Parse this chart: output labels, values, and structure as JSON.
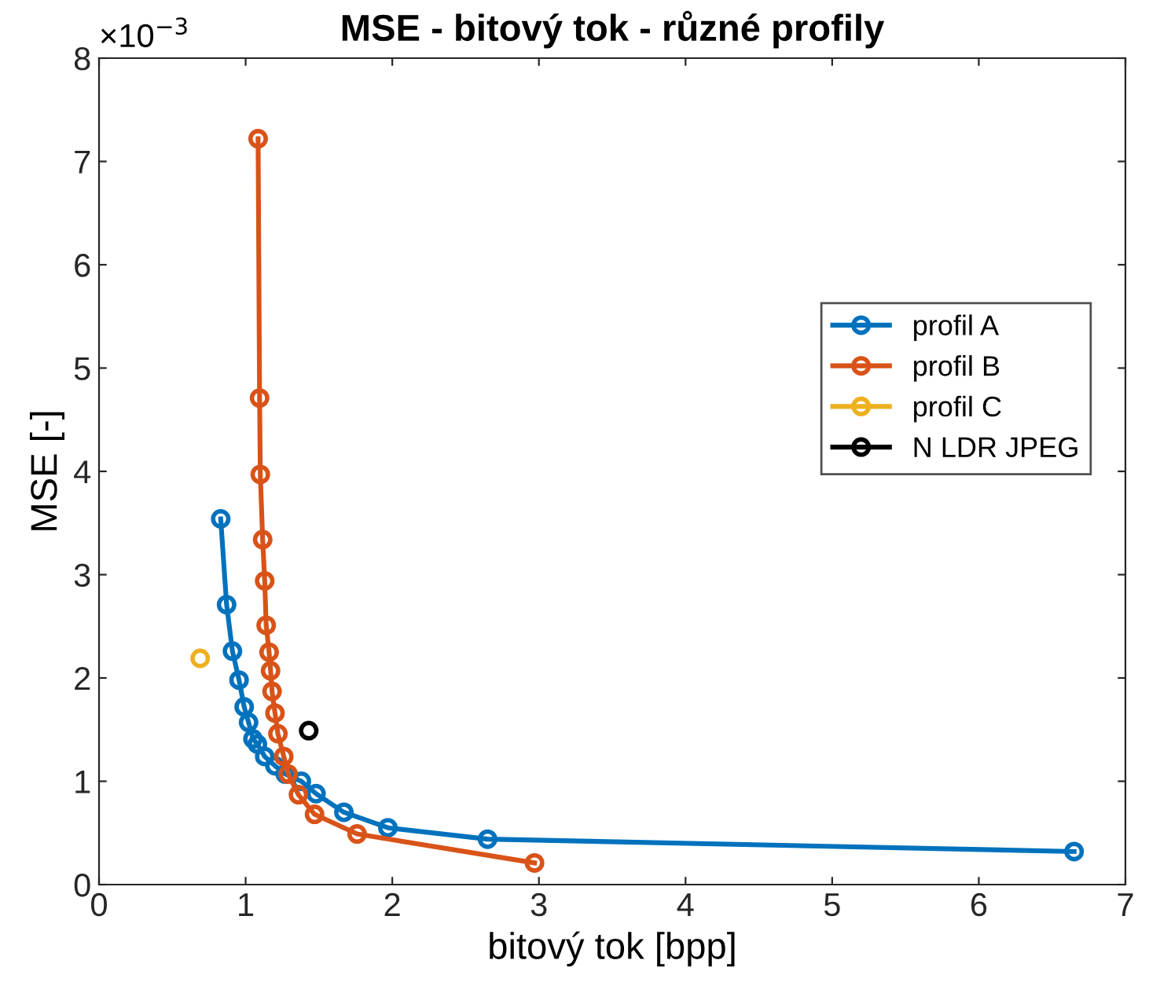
{
  "chart_data": {
    "type": "line",
    "title": "MSE - bitový tok - různé profily",
    "xlabel": "bitový tok [bpp]",
    "ylabel": "MSE [-]",
    "annotations": [
      "×10$^{−3}$"
    ],
    "xlim": [
      0,
      7
    ],
    "xticks": [
      0,
      1,
      2,
      3,
      4,
      5,
      6,
      7
    ],
    "ylim": [
      0,
      8
    ],
    "yticks": [
      0,
      1,
      2,
      3,
      4,
      5,
      6,
      7,
      8
    ],
    "grid": false,
    "legend": "right",
    "marker": "circle",
    "line_style": "solid",
    "series": [
      {
        "name": "profil A",
        "color": "#0072bd",
        "x": [
          0.83,
          0.87,
          0.91,
          0.955,
          0.99,
          1.02,
          1.05,
          1.08,
          1.13,
          1.2,
          1.27,
          1.38,
          1.48,
          1.67,
          1.97,
          2.65,
          6.65
        ],
        "values": [
          3.54,
          2.71,
          2.26,
          1.98,
          1.72,
          1.57,
          1.41,
          1.36,
          1.24,
          1.15,
          1.07,
          1.0,
          0.88,
          0.7,
          0.55,
          0.44,
          0.32
        ]
      },
      {
        "name": "profil B",
        "color": "#d95319",
        "x": [
          1.085,
          1.095,
          1.1,
          1.116,
          1.13,
          1.14,
          1.16,
          1.17,
          1.18,
          1.2,
          1.22,
          1.26,
          1.29,
          1.36,
          1.47,
          1.76,
          2.97
        ],
        "values": [
          7.22,
          4.71,
          3.97,
          3.34,
          2.94,
          2.51,
          2.25,
          2.07,
          1.87,
          1.66,
          1.46,
          1.24,
          1.07,
          0.87,
          0.68,
          0.49,
          0.21
        ]
      },
      {
        "name": "profil C",
        "color": "#edb120",
        "x": [
          0.69
        ],
        "values": [
          2.19
        ]
      },
      {
        "name": "N LDR JPEG",
        "color": "#000000",
        "x": [
          1.43
        ],
        "values": [
          1.49
        ]
      }
    ]
  }
}
